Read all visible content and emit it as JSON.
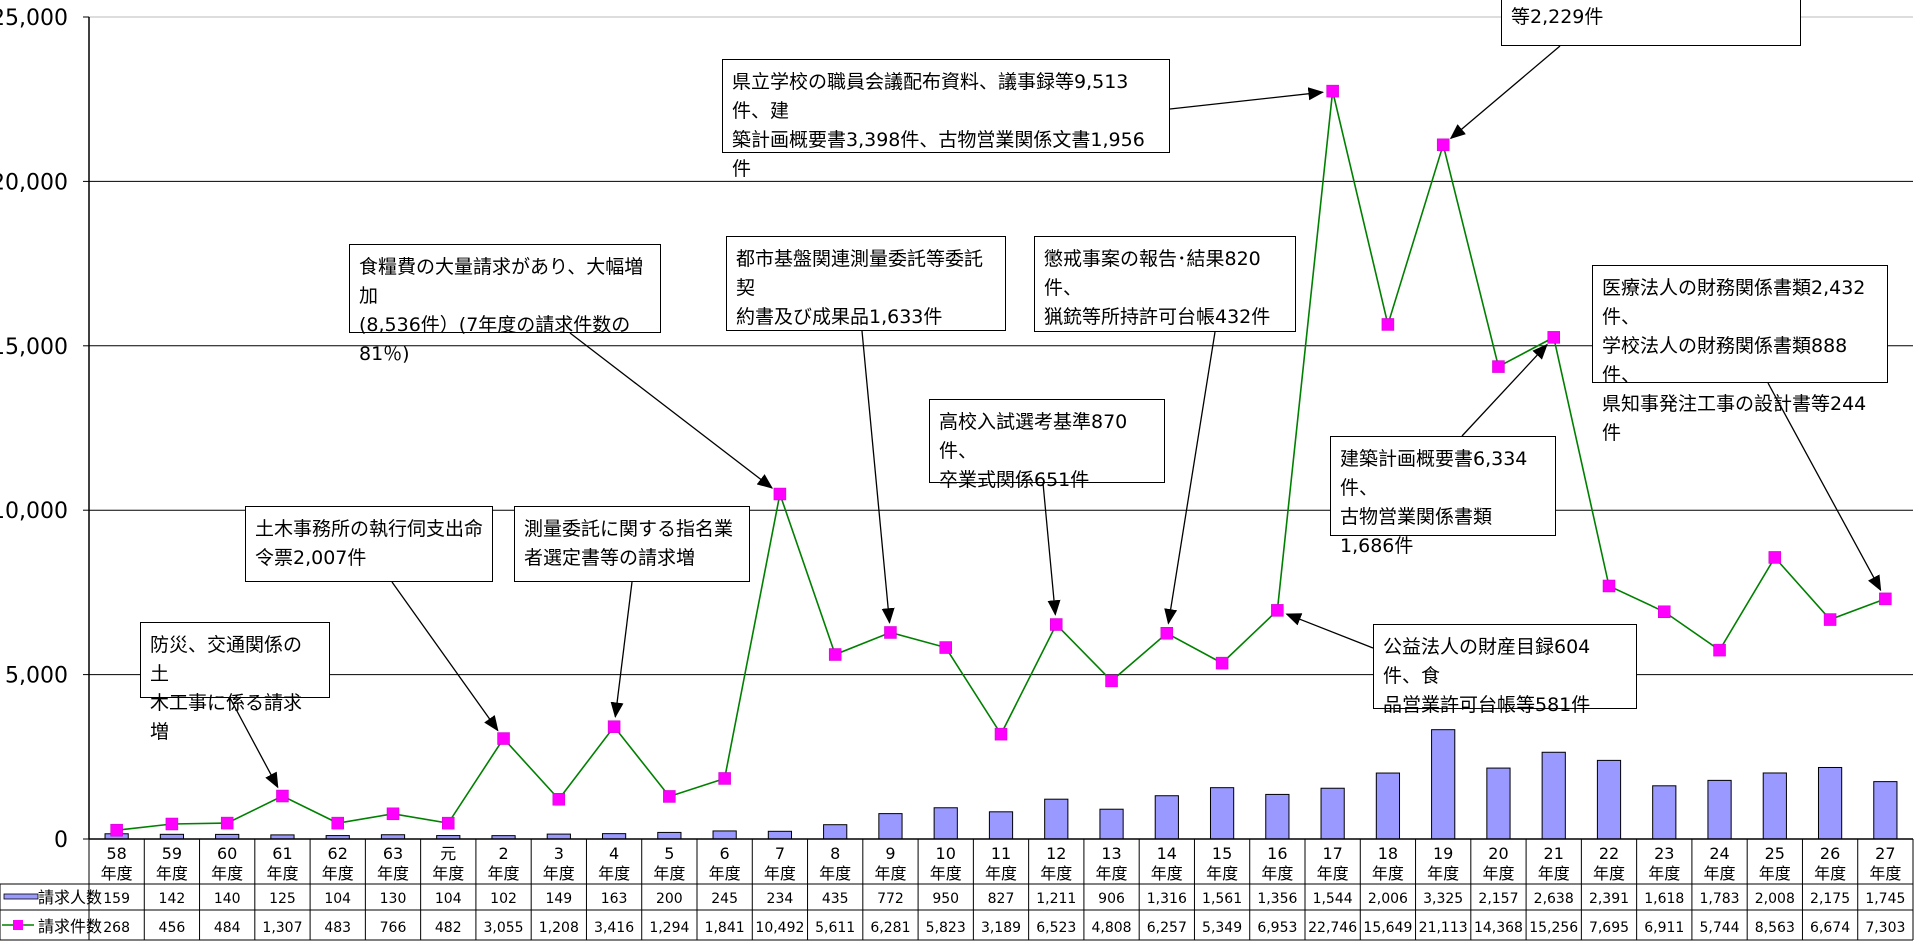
{
  "chart_data": {
    "type": "bar",
    "ylim": [
      0,
      25000
    ],
    "yticks": [
      "0",
      "5,000",
      "10,000",
      "15,000",
      "20,000",
      "25,000"
    ],
    "categories": [
      [
        "58",
        "年度"
      ],
      [
        "59",
        "年度"
      ],
      [
        "60",
        "年度"
      ],
      [
        "61",
        "年度"
      ],
      [
        "62",
        "年度"
      ],
      [
        "63",
        "年度"
      ],
      [
        "元",
        "年度"
      ],
      [
        "2",
        "年度"
      ],
      [
        "3",
        "年度"
      ],
      [
        "4",
        "年度"
      ],
      [
        "5",
        "年度"
      ],
      [
        "6",
        "年度"
      ],
      [
        "7",
        "年度"
      ],
      [
        "8",
        "年度"
      ],
      [
        "9",
        "年度"
      ],
      [
        "10",
        "年度"
      ],
      [
        "11",
        "年度"
      ],
      [
        "12",
        "年度"
      ],
      [
        "13",
        "年度"
      ],
      [
        "14",
        "年度"
      ],
      [
        "15",
        "年度"
      ],
      [
        "16",
        "年度"
      ],
      [
        "17",
        "年度"
      ],
      [
        "18",
        "年度"
      ],
      [
        "19",
        "年度"
      ],
      [
        "20",
        "年度"
      ],
      [
        "21",
        "年度"
      ],
      [
        "22",
        "年度"
      ],
      [
        "23",
        "年度"
      ],
      [
        "24",
        "年度"
      ],
      [
        "25",
        "年度"
      ],
      [
        "26",
        "年度"
      ],
      [
        "27",
        "年度"
      ]
    ],
    "series": [
      {
        "name": "請求人数",
        "kind": "bar",
        "color": "#9999ff",
        "values": [
          159,
          142,
          140,
          125,
          104,
          130,
          104,
          102,
          149,
          163,
          200,
          245,
          234,
          435,
          772,
          950,
          827,
          1211,
          906,
          1316,
          1561,
          1356,
          1544,
          2006,
          3325,
          2157,
          2638,
          2391,
          1618,
          1783,
          2008,
          2175,
          1745
        ],
        "labels": [
          "159",
          "142",
          "140",
          "125",
          "104",
          "130",
          "104",
          "102",
          "149",
          "163",
          "200",
          "245",
          "234",
          "435",
          "772",
          "950",
          "827",
          "1,211",
          "906",
          "1,316",
          "1,561",
          "1,356",
          "1,544",
          "2,006",
          "3,325",
          "2,157",
          "2,638",
          "2,391",
          "1,618",
          "1,783",
          "2,008",
          "2,175",
          "1,745"
        ]
      },
      {
        "name": "請求件数",
        "kind": "line",
        "color": "#008000",
        "marker_color": "#ff00ff",
        "values": [
          268,
          456,
          484,
          1307,
          483,
          766,
          482,
          3055,
          1208,
          3416,
          1294,
          1841,
          10492,
          5611,
          6281,
          5823,
          3189,
          6523,
          4808,
          6257,
          5349,
          6953,
          22746,
          15649,
          21113,
          14368,
          15256,
          7695,
          6911,
          5744,
          8563,
          6674,
          7303
        ],
        "labels": [
          "268",
          "456",
          "484",
          "1,307",
          "483",
          "766",
          "482",
          "3,055",
          "1,208",
          "3,416",
          "1,294",
          "1,841",
          "10,492",
          "5,611",
          "6,281",
          "5,823",
          "3,189",
          "6,523",
          "4,808",
          "6,257",
          "5,349",
          "6,953",
          "22,746",
          "15,649",
          "21,113",
          "14,368",
          "15,256",
          "7,695",
          "6,911",
          "5,744",
          "8,563",
          "6,674",
          "7,303"
        ]
      }
    ],
    "annotations": [
      {
        "text": "防災、交通関係の土\n木工事に係る請求増",
        "target": 3
      },
      {
        "text": "土木事務所の執行伺支出命\n令票2,007件",
        "target": 7
      },
      {
        "text": "測量委託に関する指名業\n者選定書等の請求増",
        "target": 9
      },
      {
        "text": "食糧費の大量請求があり、大幅増加\n(8,536件）(7年度の請求件数の81％)",
        "target": 12
      },
      {
        "text": "都市基盤関連測量委託等委託契\n約書及び成果品1,633件",
        "target": 14
      },
      {
        "text": "県立学校の職員会議配布資料、議事録等9,513件、建\n築計画概要書3,398件、古物営業関係文書1,956件",
        "target": 22
      },
      {
        "text": "懲戒事案の報告･結果820件、\n猟銃等所持許可台帳432件",
        "target": 19
      },
      {
        "text": "高校入試選考基準870件、\n卒業式関係651件",
        "target": 17
      },
      {
        "text": "建築計画概要書6,334件、\n古物営業関係書類1,686件",
        "target": 26
      },
      {
        "text": "医療法人の財務関係書類2,432件、\n学校法人の財務関係書類888件、\n県知事発注工事の設計書等244件",
        "target": 32
      },
      {
        "text": "公益法人の財産目録604件、食\n品営業許可台帳等581件",
        "target": 21
      },
      {
        "text": "等2,229件",
        "target": 24
      }
    ]
  }
}
